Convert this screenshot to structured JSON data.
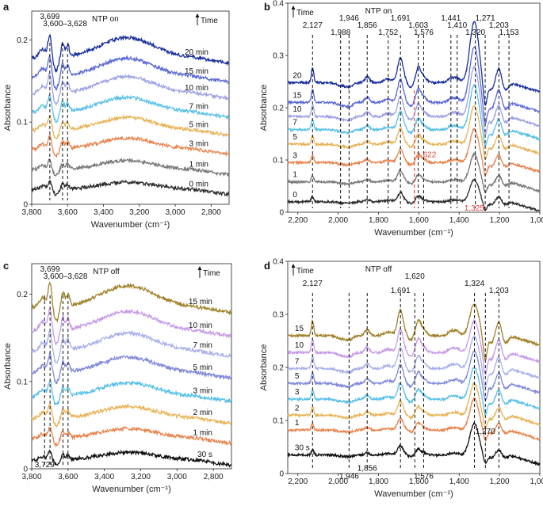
{
  "chart_data": [
    {
      "panel": "a",
      "type": "line",
      "title": "NTP on",
      "time_label": "Time",
      "xlabel": "Wavenumber (cm⁻¹)",
      "ylabel": "Absorbance",
      "xlim": [
        3800,
        2700
      ],
      "ylim": [
        0,
        0.235
      ],
      "xticks": [
        "3,800",
        "3,600",
        "3,400",
        "3,200",
        "3,000",
        "2,800"
      ],
      "xtick_values": [
        3800,
        3600,
        3400,
        3200,
        3000,
        2800
      ],
      "yticks": [
        "0",
        "0.1",
        "0.2"
      ],
      "ytick_values": [
        0,
        0.1,
        0.2
      ],
      "annotations": [
        {
          "text": "3,699",
          "x": 3699
        },
        {
          "text": "3,600–3,628",
          "x": 3614
        }
      ],
      "dashed_lines": [
        3699,
        3628,
        3600
      ],
      "series": [
        {
          "name": "0 min",
          "color": "#2b2b2b",
          "baseline": 0.018
        },
        {
          "name": "1 min",
          "color": "#777777",
          "baseline": 0.042
        },
        {
          "name": "3 min",
          "color": "#e8844e",
          "baseline": 0.067
        },
        {
          "name": "5 min",
          "color": "#e8b357",
          "baseline": 0.09
        },
        {
          "name": "7 min",
          "color": "#57c0e8",
          "baseline": 0.112
        },
        {
          "name": "10 min",
          "color": "#9ea2e6",
          "baseline": 0.135
        },
        {
          "name": "15 min",
          "color": "#5b69d6",
          "baseline": 0.155
        },
        {
          "name": "20 min",
          "color": "#1a2f9e",
          "baseline": 0.178
        }
      ]
    },
    {
      "panel": "b",
      "type": "line",
      "title": "NTP on",
      "time_label": "Time",
      "xlabel": "Wavenumber (cm⁻¹)",
      "ylabel": "Absorbance",
      "xlim": [
        2250,
        1000
      ],
      "ylim": [
        0,
        0.4
      ],
      "xticks": [
        "2,200",
        "2,000",
        "1,800",
        "1,600",
        "1,400",
        "1,200",
        "1,000"
      ],
      "xtick_values": [
        2200,
        2000,
        1800,
        1600,
        1400,
        1200,
        1000
      ],
      "yticks": [
        "0",
        "0.1",
        "0.2",
        "0.3",
        "0.4"
      ],
      "ytick_values": [
        0,
        0.1,
        0.2,
        0.3,
        0.4
      ],
      "annotations": [
        {
          "text": "2,127",
          "x": 2127
        },
        {
          "text": "1,988",
          "x": 1988
        },
        {
          "text": "1,946",
          "x": 1946
        },
        {
          "text": "1,856",
          "x": 1856
        },
        {
          "text": "1,752",
          "x": 1752
        },
        {
          "text": "1,691",
          "x": 1691
        },
        {
          "text": "1,603",
          "x": 1603
        },
        {
          "text": "1,576",
          "x": 1576
        },
        {
          "text": "1,441",
          "x": 1441
        },
        {
          "text": "1,410",
          "x": 1410
        },
        {
          "text": "1,320",
          "x": 1320
        },
        {
          "text": "1,271",
          "x": 1271
        },
        {
          "text": "1,203",
          "x": 1203
        },
        {
          "text": "1,153",
          "x": 1153
        }
      ],
      "red_annotations": [
        {
          "text": "1,622",
          "x": 1622
        },
        {
          "text": "1,325",
          "x": 1325
        }
      ],
      "dashed_lines": [
        2127,
        1988,
        1946,
        1856,
        1752,
        1691,
        1603,
        1576,
        1441,
        1410,
        1320,
        1271,
        1203,
        1153
      ],
      "red_dashed_lines": [
        1622
      ],
      "series": [
        {
          "name": "0",
          "color": "#2b2b2b",
          "baseline": 0.02
        },
        {
          "name": "1",
          "color": "#777777",
          "baseline": 0.058
        },
        {
          "name": "3",
          "color": "#e8844e",
          "baseline": 0.095
        },
        {
          "name": "5",
          "color": "#e8b357",
          "baseline": 0.13
        },
        {
          "name": "7",
          "color": "#57c0e8",
          "baseline": 0.158
        },
        {
          "name": "10",
          "color": "#9ea2e6",
          "baseline": 0.183
        },
        {
          "name": "15",
          "color": "#5b69d6",
          "baseline": 0.21
        },
        {
          "name": "20",
          "color": "#1a2f9e",
          "baseline": 0.248
        }
      ]
    },
    {
      "panel": "c",
      "type": "line",
      "title": "NTP off",
      "time_label": "Time",
      "xlabel": "Wavenumber (cm⁻¹)",
      "ylabel": "Absorbance",
      "xlim": [
        3800,
        2700
      ],
      "ylim": [
        0,
        0.235
      ],
      "xticks": [
        "3,800",
        "3,600",
        "3,400",
        "3,200",
        "3,000",
        "2,800"
      ],
      "xtick_values": [
        3800,
        3600,
        3400,
        3200,
        3000,
        2800
      ],
      "yticks": [
        "0",
        "0.1",
        "0.2"
      ],
      "ytick_values": [
        0,
        0.1,
        0.2
      ],
      "annotations": [
        {
          "text": "3,699",
          "x": 3699
        },
        {
          "text": "3,600–3,628",
          "x": 3614
        },
        {
          "text": "3,729",
          "x": 3729
        }
      ],
      "dashed_lines": [
        3729,
        3699,
        3628,
        3600
      ],
      "series": [
        {
          "name": "30 s",
          "color": "#111111",
          "baseline": 0.01
        },
        {
          "name": "1 min",
          "color": "#e8844e",
          "baseline": 0.035
        },
        {
          "name": "2 min",
          "color": "#e8b357",
          "baseline": 0.058
        },
        {
          "name": "3 min",
          "color": "#57c0e8",
          "baseline": 0.083
        },
        {
          "name": "5 min",
          "color": "#7f88d9",
          "baseline": 0.11
        },
        {
          "name": "7 min",
          "color": "#a9b0ea",
          "baseline": 0.135
        },
        {
          "name": "10 min",
          "color": "#c79ae6",
          "baseline": 0.158
        },
        {
          "name": "15 min",
          "color": "#a08128",
          "baseline": 0.185
        }
      ]
    },
    {
      "panel": "d",
      "type": "line",
      "title": "NTP off",
      "time_label": "Time",
      "xlabel": "Wavenumber (cm⁻¹)",
      "ylabel": "Absorbance",
      "xlim": [
        2250,
        1000
      ],
      "ylim": [
        0,
        0.4
      ],
      "xticks": [
        "2,200",
        "2,000",
        "1,800",
        "1,600",
        "1,400",
        "1,200",
        "1,000"
      ],
      "xtick_values": [
        2200,
        2000,
        1800,
        1600,
        1400,
        1200,
        1000
      ],
      "yticks": [
        "0",
        "0.1",
        "0.2",
        "0.3",
        "0.4"
      ],
      "ytick_values": [
        0,
        0.1,
        0.2,
        0.3,
        0.4
      ],
      "annotations": [
        {
          "text": "2,127",
          "x": 2127
        },
        {
          "text": "1,691",
          "x": 1691
        },
        {
          "text": "1,620",
          "x": 1620
        },
        {
          "text": "1,324",
          "x": 1324
        },
        {
          "text": "1,203",
          "x": 1203
        },
        {
          "text": "1,946",
          "x": 1946
        },
        {
          "text": "1,856",
          "x": 1856
        },
        {
          "text": "1,576",
          "x": 1576
        },
        {
          "text": "1,270",
          "x": 1270
        }
      ],
      "dashed_lines": [
        2127,
        1946,
        1856,
        1691,
        1620,
        1576,
        1324,
        1270,
        1203
      ],
      "series": [
        {
          "name": "30 s",
          "color": "#111111",
          "baseline": 0.035
        },
        {
          "name": "1",
          "color": "#e8844e",
          "baseline": 0.082
        },
        {
          "name": "2",
          "color": "#e8b357",
          "baseline": 0.11
        },
        {
          "name": "3",
          "color": "#57c0e8",
          "baseline": 0.14
        },
        {
          "name": "5",
          "color": "#7f88d9",
          "baseline": 0.17
        },
        {
          "name": "7",
          "color": "#a9b0ea",
          "baseline": 0.198
        },
        {
          "name": "10",
          "color": "#c79ae6",
          "baseline": 0.228
        },
        {
          "name": "15",
          "color": "#a08128",
          "baseline": 0.26
        }
      ]
    }
  ]
}
